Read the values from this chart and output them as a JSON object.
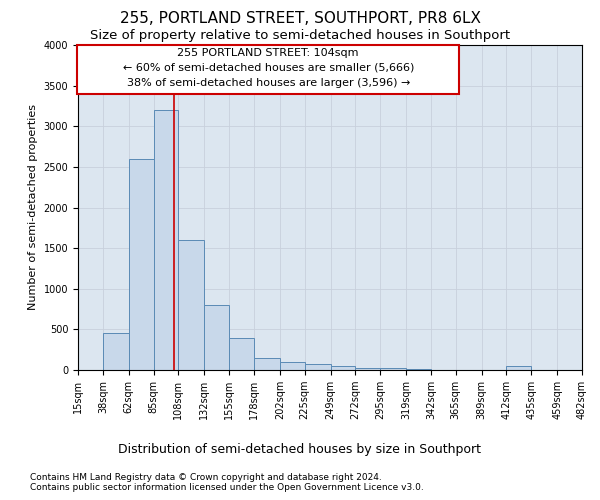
{
  "title1": "255, PORTLAND STREET, SOUTHPORT, PR8 6LX",
  "title2": "Size of property relative to semi-detached houses in Southport",
  "xlabel": "Distribution of semi-detached houses by size in Southport",
  "ylabel": "Number of semi-detached properties",
  "footer1": "Contains HM Land Registry data © Crown copyright and database right 2024.",
  "footer2": "Contains public sector information licensed under the Open Government Licence v3.0.",
  "annotation_line1": "255 PORTLAND STREET: 104sqm",
  "annotation_line2": "← 60% of semi-detached houses are smaller (5,666)",
  "annotation_line3": "38% of semi-detached houses are larger (3,596) →",
  "property_size": 104,
  "bin_edges": [
    15,
    38,
    62,
    85,
    108,
    132,
    155,
    178,
    202,
    225,
    249,
    272,
    295,
    319,
    342,
    365,
    389,
    412,
    435,
    459,
    482
  ],
  "bar_heights": [
    5,
    450,
    2600,
    3200,
    1600,
    800,
    400,
    150,
    100,
    80,
    50,
    30,
    20,
    10,
    5,
    0,
    0,
    50,
    0,
    0
  ],
  "bar_color": "#c8d8ea",
  "bar_edge_color": "#5a8ab5",
  "vline_color": "#cc0000",
  "vline_x": 104,
  "box_edge_color": "#cc0000",
  "ylim": [
    0,
    4000
  ],
  "yticks": [
    0,
    500,
    1000,
    1500,
    2000,
    2500,
    3000,
    3500,
    4000
  ],
  "grid_color": "#c8d0dc",
  "bg_color": "#dce6f0",
  "title1_fontsize": 11,
  "title2_fontsize": 9.5,
  "xlabel_fontsize": 9,
  "ylabel_fontsize": 8,
  "tick_fontsize": 7,
  "annotation_fontsize": 8,
  "footer_fontsize": 6.5
}
